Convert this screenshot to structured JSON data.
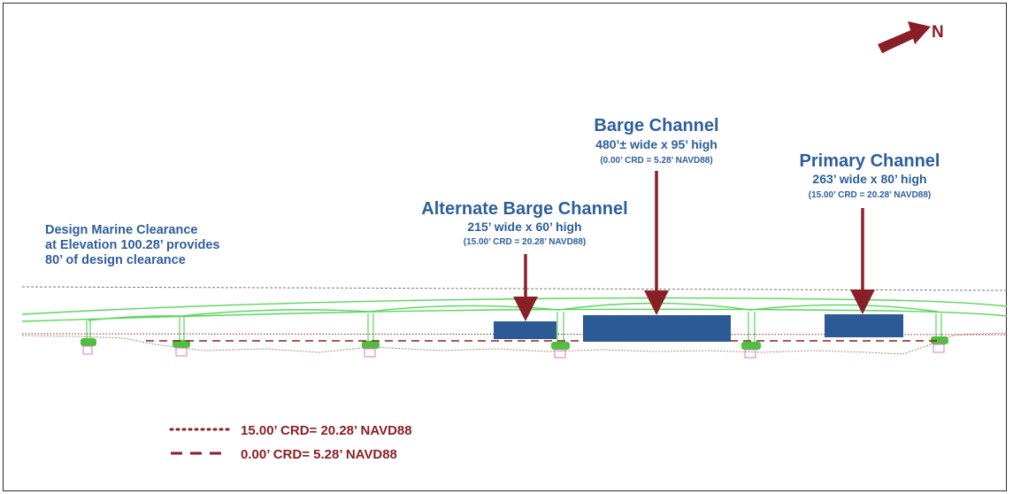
{
  "north_label": "N",
  "design_clearance": {
    "line1": "Design Marine Clearance",
    "line2": "at Elevation 100.28’ provides",
    "line3": "80’ of design clearance"
  },
  "channels": {
    "alternate": {
      "title": "Alternate Barge Channel",
      "size": "215’ wide x 60’ high",
      "datum": "(15.00’ CRD = 20.28’ NAVD88)"
    },
    "barge": {
      "title": "Barge Channel",
      "size": "480’± wide x 95’ high",
      "datum": "(0.00’ CRD = 5.28’ NAVD88)"
    },
    "primary": {
      "title": "Primary Channel",
      "size": "263’ wide x 80’ high",
      "datum": "(15.00’ CRD = 20.28’ NAVD88)"
    }
  },
  "legend": {
    "dotted": "15.00’ CRD= 20.28’ NAVD88",
    "dashed": "0.00’ CRD= 5.28’ NAVD88"
  },
  "colors": {
    "channel_fill": "#2b5a94",
    "arrow": "#8a2027",
    "bridge": "#58d65b",
    "text_blue": "#2d5e9c"
  }
}
